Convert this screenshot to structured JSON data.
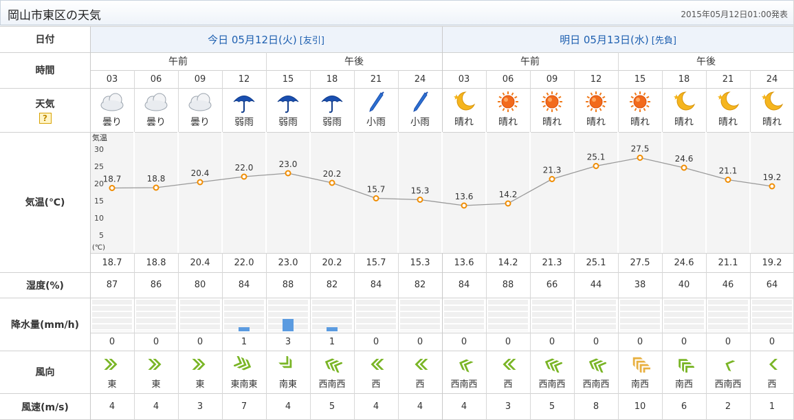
{
  "header": {
    "title": "岡山市東区の天気",
    "issued": "2015年05月12日01:00発表"
  },
  "labels": {
    "date": "日付",
    "time": "時間",
    "weather": "天気",
    "help": "?",
    "temperature": "気温(℃)",
    "humidity": "湿度(%)",
    "precip": "降水量(mm/h)",
    "wind_dir": "風向",
    "wind_speed": "風速(m/s)",
    "chart_label": "気温",
    "chart_unit": "(℃)"
  },
  "days": [
    {
      "label": "今日 05月12日(火)",
      "rokuyo": "[友引]",
      "am": "午前",
      "pm": "午後"
    },
    {
      "label": "明日 05月13日(水)",
      "rokuyo": "[先負]",
      "am": "午前",
      "pm": "午後"
    }
  ],
  "hours": [
    "03",
    "06",
    "09",
    "12",
    "15",
    "18",
    "21",
    "24",
    "03",
    "06",
    "09",
    "12",
    "15",
    "18",
    "21",
    "24"
  ],
  "weather": [
    {
      "icon": "cloud-icon",
      "label": "曇り"
    },
    {
      "icon": "cloud-icon",
      "label": "曇り"
    },
    {
      "icon": "cloud-icon",
      "label": "曇り"
    },
    {
      "icon": "umbrella-icon",
      "label": "弱雨"
    },
    {
      "icon": "umbrella-icon",
      "label": "弱雨"
    },
    {
      "icon": "umbrella-icon",
      "label": "弱雨"
    },
    {
      "icon": "closed-umbrella-icon",
      "label": "小雨"
    },
    {
      "icon": "closed-umbrella-icon",
      "label": "小雨"
    },
    {
      "icon": "moon-icon",
      "label": "晴れ"
    },
    {
      "icon": "sun-icon",
      "label": "晴れ"
    },
    {
      "icon": "sun-icon",
      "label": "晴れ"
    },
    {
      "icon": "sun-icon",
      "label": "晴れ"
    },
    {
      "icon": "sun-icon",
      "label": "晴れ"
    },
    {
      "icon": "moon-icon",
      "label": "晴れ"
    },
    {
      "icon": "moon-icon",
      "label": "晴れ"
    },
    {
      "icon": "moon-icon",
      "label": "晴れ"
    }
  ],
  "chart_data": {
    "type": "line",
    "x": [
      "03",
      "06",
      "09",
      "12",
      "15",
      "18",
      "21",
      "24",
      "03",
      "06",
      "09",
      "12",
      "15",
      "18",
      "21",
      "24"
    ],
    "values": [
      18.7,
      18.8,
      20.4,
      22.0,
      23.0,
      20.2,
      15.7,
      15.3,
      13.6,
      14.2,
      21.3,
      25.1,
      27.5,
      24.6,
      21.1,
      19.2
    ],
    "value_labels": [
      "18.7",
      "18.8",
      "20.4",
      "22.0",
      "23.0",
      "20.2",
      "15.7",
      "15.3",
      "13.6",
      "14.2",
      "21.3",
      "25.1",
      "27.5",
      "24.6",
      "21.1",
      "19.2"
    ],
    "ylabel": "気温",
    "yunit": "(℃)",
    "yticks": [
      "30",
      "25",
      "20",
      "15",
      "10",
      "5"
    ],
    "ytick_values": [
      30,
      25,
      20,
      15,
      10,
      5
    ],
    "ylim": [
      0,
      35
    ],
    "line_color": "#999999",
    "marker_color": "#f08c00"
  },
  "humidity": [
    "87",
    "86",
    "80",
    "84",
    "88",
    "82",
    "84",
    "82",
    "84",
    "88",
    "66",
    "44",
    "38",
    "40",
    "46",
    "64"
  ],
  "precip": {
    "labels": [
      "0",
      "0",
      "0",
      "1",
      "3",
      "1",
      "0",
      "0",
      "0",
      "0",
      "0",
      "0",
      "0",
      "0",
      "0",
      "0"
    ],
    "values": [
      0,
      0,
      0,
      1,
      3,
      1,
      0,
      0,
      0,
      0,
      0,
      0,
      0,
      0,
      0,
      0
    ],
    "max": 10,
    "bar_color": "#5b9be0"
  },
  "wind": [
    {
      "dir": "東",
      "speed": "4",
      "level": 2,
      "angle": 0
    },
    {
      "dir": "東",
      "speed": "4",
      "level": 2,
      "angle": 0
    },
    {
      "dir": "東",
      "speed": "3",
      "level": 2,
      "angle": 0
    },
    {
      "dir": "東南東",
      "speed": "7",
      "level": 3,
      "angle": 22
    },
    {
      "dir": "南東",
      "speed": "4",
      "level": 2,
      "angle": 45
    },
    {
      "dir": "西南西",
      "speed": "5",
      "level": 3,
      "angle": 202
    },
    {
      "dir": "西",
      "speed": "4",
      "level": 2,
      "angle": 180
    },
    {
      "dir": "西",
      "speed": "4",
      "level": 2,
      "angle": 180
    },
    {
      "dir": "西南西",
      "speed": "4",
      "level": 2,
      "angle": 202
    },
    {
      "dir": "西",
      "speed": "3",
      "level": 2,
      "angle": 180
    },
    {
      "dir": "西南西",
      "speed": "5",
      "level": 3,
      "angle": 202
    },
    {
      "dir": "西南西",
      "speed": "8",
      "level": 3,
      "angle": 202
    },
    {
      "dir": "南西",
      "speed": "10",
      "level": 4,
      "angle": 225
    },
    {
      "dir": "南西",
      "speed": "6",
      "level": 3,
      "angle": 225
    },
    {
      "dir": "西南西",
      "speed": "2",
      "level": 1,
      "angle": 202
    },
    {
      "dir": "西",
      "speed": "1",
      "level": 1,
      "angle": 180
    }
  ],
  "colors": {
    "blue_text": "#1d5fb0",
    "wind_green": "#7ab526",
    "wind_strong": "#e8b040"
  }
}
